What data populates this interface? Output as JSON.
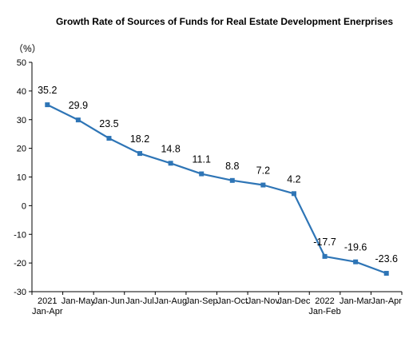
{
  "chart_data": {
    "type": "line",
    "title": "Growth Rate of Sources of Funds for Real Estate Development Enerprises",
    "unit": "（%）",
    "xlabel": "",
    "ylabel": "",
    "ylim": [
      -30,
      50
    ],
    "yticks": [
      "50",
      "40",
      "30",
      "20",
      "10",
      "0",
      "-10",
      "-20",
      "-30"
    ],
    "categories": [
      [
        "2021",
        "Jan-Apr"
      ],
      [
        "Jan-May"
      ],
      [
        "Jan-Jun"
      ],
      [
        "Jan-Jul"
      ],
      [
        "Jan-Aug"
      ],
      [
        "Jan-Sep"
      ],
      [
        "Jan-Oct"
      ],
      [
        "Jan-Nov"
      ],
      [
        "Jan-Dec"
      ],
      [
        "2022",
        "Jan-Feb"
      ],
      [
        "Jan-Mar"
      ],
      [
        "Jan-Apr"
      ]
    ],
    "values": [
      35.2,
      29.9,
      23.5,
      18.2,
      14.8,
      11.1,
      8.8,
      7.2,
      4.2,
      -17.7,
      -19.6,
      -23.6
    ],
    "data_labels": [
      "35.2",
      "29.9",
      "23.5",
      "18.2",
      "14.8",
      "11.1",
      "8.8",
      "7.2",
      "4.2",
      "-17.7",
      "-19.6",
      "-23.6"
    ],
    "grid": false,
    "legend": "none",
    "line_color": "#2E75B6"
  }
}
